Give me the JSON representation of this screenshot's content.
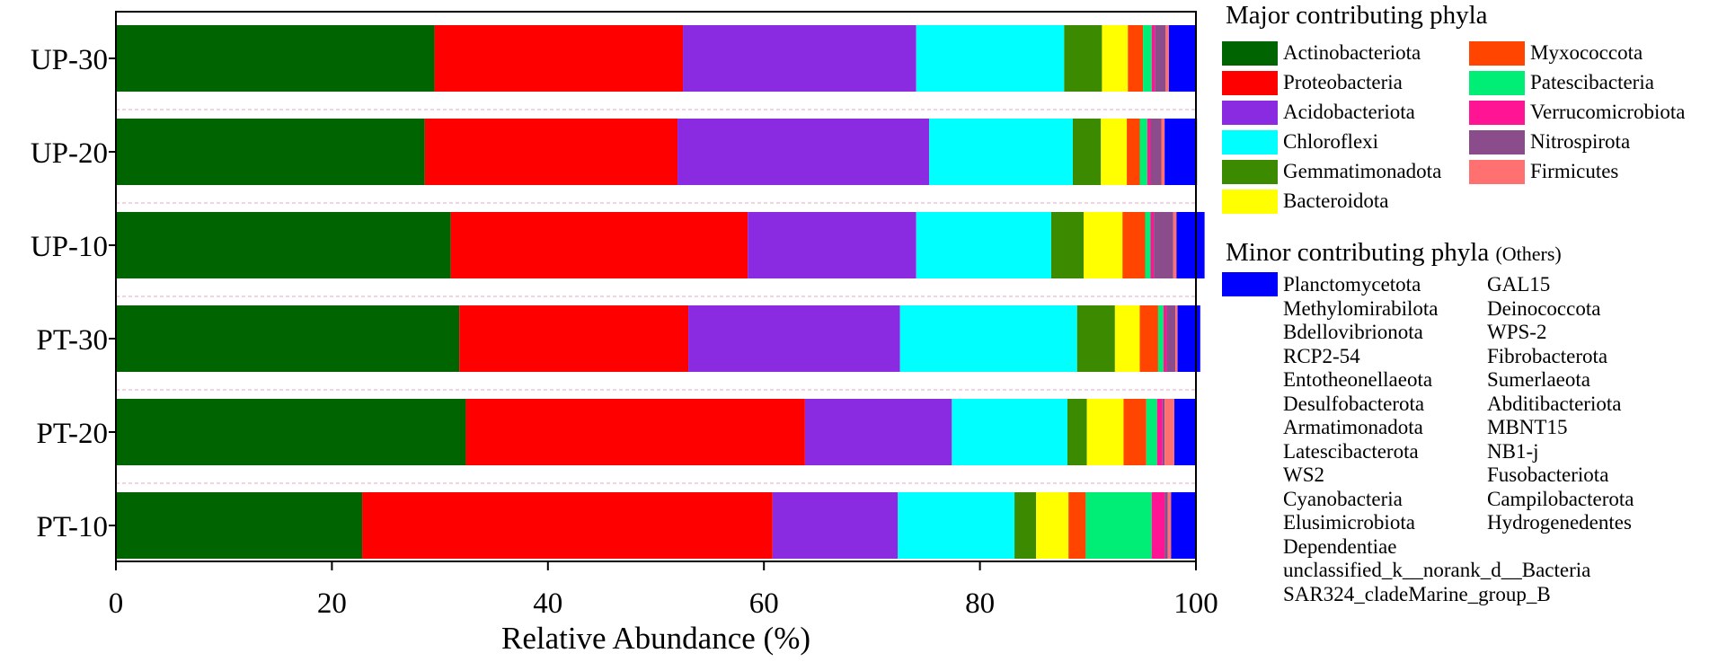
{
  "chart_data": {
    "type": "bar",
    "orientation": "horizontal",
    "stacked": true,
    "categories": [
      "UP-30",
      "UP-20",
      "UP-10",
      "PT-30",
      "PT-20",
      "PT-10"
    ],
    "xlabel": "Relative Abundance (%)",
    "xlim": [
      0,
      100
    ],
    "xticks": [
      "0",
      "20",
      "40",
      "60",
      "80",
      "100"
    ],
    "series": [
      {
        "name": "Actinobacteriota",
        "color": "#006400",
        "values": [
          29.5,
          28.6,
          31.0,
          31.8,
          32.4,
          22.8
        ]
      },
      {
        "name": "Proteobacteria",
        "color": "#ff0000",
        "values": [
          23.0,
          23.4,
          27.5,
          21.2,
          31.4,
          38.0
        ]
      },
      {
        "name": "Acidobacteriota",
        "color": "#8a2be2",
        "values": [
          21.6,
          23.3,
          15.6,
          19.6,
          13.6,
          11.6
        ]
      },
      {
        "name": "Chloroflexi",
        "color": "#00ffff",
        "values": [
          13.7,
          13.3,
          12.5,
          16.4,
          10.7,
          10.8
        ]
      },
      {
        "name": "Gemmatimonadota",
        "color": "#3c8a00",
        "values": [
          3.5,
          2.6,
          3.0,
          3.5,
          1.8,
          2.0
        ]
      },
      {
        "name": "Bacteroidota",
        "color": "#ffff00",
        "values": [
          2.4,
          2.4,
          3.6,
          2.3,
          3.4,
          3.0
        ]
      },
      {
        "name": "Myxococcota",
        "color": "#ff4500",
        "values": [
          1.4,
          1.2,
          2.1,
          1.7,
          2.1,
          1.6
        ]
      },
      {
        "name": "Patescibacteria",
        "color": "#00ee76",
        "values": [
          0.8,
          0.7,
          0.5,
          0.5,
          1.0,
          6.1
        ]
      },
      {
        "name": "Verrucomicrobiota",
        "color": "#ff1493",
        "values": [
          0.3,
          0.3,
          0.3,
          0.3,
          0.5,
          1.2
        ]
      },
      {
        "name": "Nitrospirota",
        "color": "#8b4c8b",
        "values": [
          1.0,
          1.0,
          1.8,
          0.8,
          0.2,
          0.3
        ]
      },
      {
        "name": "Firmicutes",
        "color": "#ff7070",
        "values": [
          0.3,
          0.3,
          0.3,
          0.2,
          0.9,
          0.3
        ]
      },
      {
        "name": "Others",
        "color": "#0000ff",
        "values": [
          2.5,
          3.0,
          2.6,
          2.1,
          2.0,
          2.3
        ]
      }
    ]
  },
  "legend": {
    "major_title": "Major contributing phyla",
    "minor_title": "Minor contributing phyla",
    "minor_title_suffix": "(Others)",
    "major_items_col1": [
      "Actinobacteriota",
      "Proteobacteria",
      "Acidobacteriota",
      "Chloroflexi",
      "Gemmatimonadota",
      "Bacteroidota"
    ],
    "major_items_col2": [
      "Myxococcota",
      "Patescibacteria",
      "Verrucomicrobiota",
      "Nitrospirota",
      "Firmicutes"
    ],
    "minor_col1": [
      "Planctomycetota",
      "Methylomirabilota",
      "Bdellovibrionota",
      "RCP2-54",
      "Entotheonellaeota",
      "Desulfobacterota",
      "Armatimonadota",
      "Latescibacterota",
      "WS2",
      "Cyanobacteria",
      "Elusimicrobiota",
      "Dependentiae",
      "unclassified_k__norank_d__Bacteria",
      "SAR324_cladeMarine_group_B"
    ],
    "minor_col2": [
      "GAL15",
      "Deinococcota",
      "WPS-2",
      "Fibrobacterota",
      "Sumerlaeota",
      "Abditibacteriota",
      "MBNT15",
      "NB1-j",
      "Fusobacteriota",
      "Campilobacterota",
      "Hydrogenedentes"
    ]
  }
}
